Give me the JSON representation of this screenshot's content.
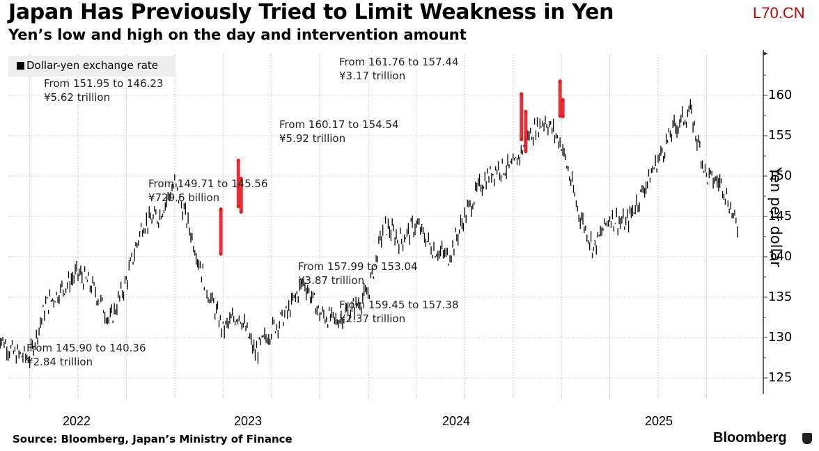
{
  "header": {
    "title": "Japan Has Previously Tried to Limit Weakness in Yen",
    "subtitle": "Yen’s low and high on the day and intervention amount",
    "watermark": "L70.CN"
  },
  "footer": {
    "source": "Source: Bloomberg, Japan’s Ministry of Finance",
    "brand": "Bloomberg"
  },
  "chart_data": {
    "type": "line",
    "title": "Japan Has Previously Tried to Limit Weakness in Yen",
    "subtitle": "Yen’s low and high on the day and intervention amount",
    "xlabel": "",
    "ylabel": "Yen per dollar",
    "ylim": [
      122,
      165
    ],
    "yticks": [
      125,
      130,
      135,
      140,
      145,
      150,
      155,
      160
    ],
    "xticks": [
      "2022",
      "2023",
      "2024",
      "2025"
    ],
    "grid": true,
    "legend": {
      "position": "top-left",
      "entries": [
        "Dollar-yen exchange rate"
      ]
    },
    "series": [
      {
        "name": "Dollar-yen exchange rate",
        "x": [
          "2021-08",
          "2021-09",
          "2021-10",
          "2021-11",
          "2021-12",
          "2022-01",
          "2022-02",
          "2022-03",
          "2022-04",
          "2022-05",
          "2022-06",
          "2022-07",
          "2022-08",
          "2022-09",
          "2022-10",
          "2022-11",
          "2022-12",
          "2023-01",
          "2023-02",
          "2023-03",
          "2023-04",
          "2023-05",
          "2023-06",
          "2023-07",
          "2023-08",
          "2023-09",
          "2023-10",
          "2023-11",
          "2023-12",
          "2024-01",
          "2024-02",
          "2024-03",
          "2024-04",
          "2024-05",
          "2024-06",
          "2024-07",
          "2024-08",
          "2024-09",
          "2024-10",
          "2024-11",
          "2024-12",
          "2025-01",
          "2025-02",
          "2025-03",
          "2025-04",
          "2025-05",
          "2025-06"
        ],
        "values": [
          130.5,
          128,
          127.5,
          134,
          136,
          138,
          136,
          132,
          137,
          144,
          145,
          149,
          143,
          136,
          131,
          133,
          128,
          131,
          133,
          137,
          133,
          132,
          133.5,
          135.5,
          144,
          142,
          144,
          141,
          140,
          145,
          149,
          151,
          151,
          155,
          157,
          154,
          146,
          141,
          145,
          144,
          148,
          152,
          156,
          158,
          150,
          149,
          143
        ]
      }
    ],
    "annotations": [
      {
        "text": "From 145.90 to 140.36",
        "amount": "¥2.84 trillion",
        "date": "2022-09",
        "high": 145.9,
        "low": 140.36
      },
      {
        "text": "From 151.95 to 146.23",
        "amount": "¥5.62 trillion",
        "date": "2022-10",
        "high": 151.95,
        "low": 146.23
      },
      {
        "text": "From 149.71 to 145.56",
        "amount": "¥729.6 billion",
        "date": "2022-10",
        "high": 149.71,
        "low": 145.56
      },
      {
        "text": "From 160.17 to 154.54",
        "amount": "¥5.92 trillion",
        "date": "2024-04",
        "high": 160.17,
        "low": 154.54
      },
      {
        "text": "From 157.99 to 153.04",
        "amount": "¥3.87 trillion",
        "date": "2024-05",
        "high": 157.99,
        "low": 153.04
      },
      {
        "text": "From 161.76 to 157.44",
        "amount": "¥3.17 trillion",
        "date": "2024-07",
        "high": 161.76,
        "low": 157.44
      },
      {
        "text": "From 159.45 to 157.38",
        "amount": "¥2.37 trillion",
        "date": "2024-07",
        "high": 159.45,
        "low": 157.38
      }
    ],
    "colors": {
      "line": "#000000",
      "intervention": "#e31b23",
      "grid": "#cccccc"
    }
  }
}
